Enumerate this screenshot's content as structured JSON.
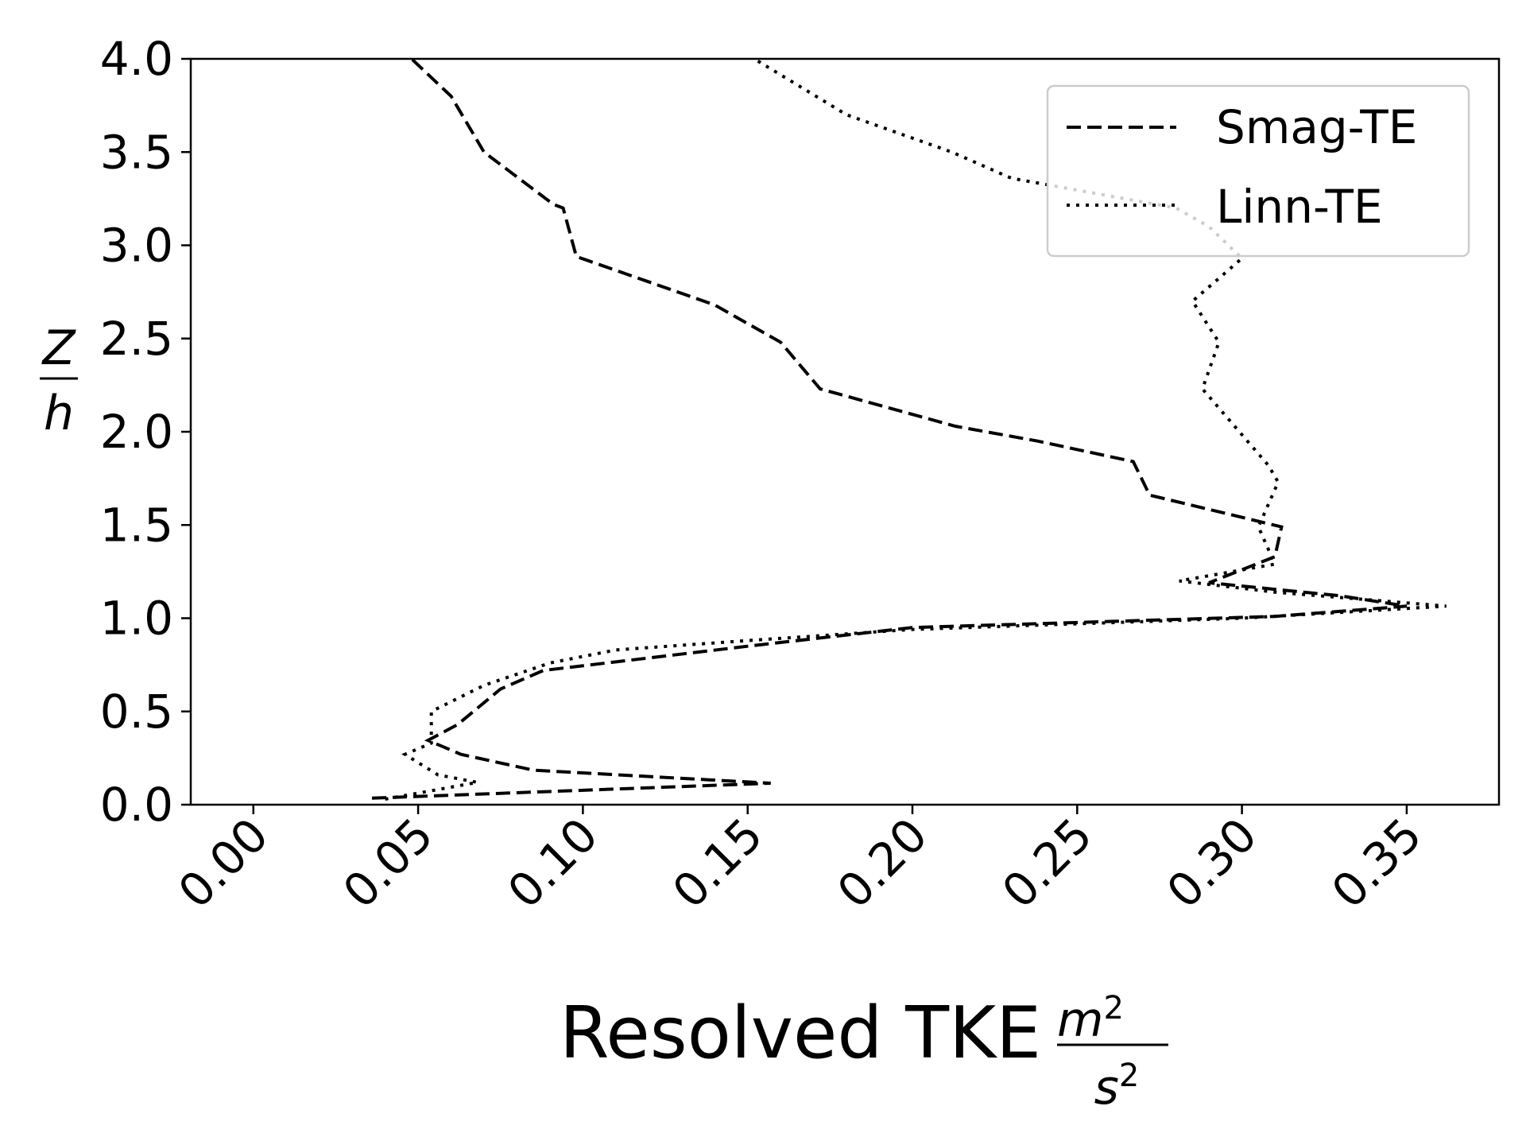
{
  "chart_data": {
    "type": "line",
    "xlabel": {
      "text": "Resolved TKE",
      "unit_numerator": "m",
      "unit_numerator_exp": "2",
      "unit_denominator": "s",
      "unit_denominator_exp": "2"
    },
    "ylabel": {
      "numerator": "Z",
      "denominator": "h"
    },
    "xlim": [
      -0.019,
      0.378
    ],
    "ylim": [
      0.0,
      4.0
    ],
    "xticks": [
      0.0,
      0.05,
      0.1,
      0.15,
      0.2,
      0.25,
      0.3,
      0.35
    ],
    "xtick_labels": [
      "0.00",
      "0.05",
      "0.10",
      "0.15",
      "0.20",
      "0.25",
      "0.30",
      "0.35"
    ],
    "yticks": [
      0.0,
      0.5,
      1.0,
      1.5,
      2.0,
      2.5,
      3.0,
      3.5,
      4.0
    ],
    "ytick_labels": [
      "0.0",
      "0.5",
      "1.0",
      "1.5",
      "2.0",
      "2.5",
      "3.0",
      "3.5",
      "4.0"
    ],
    "grid": false,
    "legend_position": "top-right",
    "series": [
      {
        "name": "Smag-TE",
        "style": "dashed",
        "color": "#000000",
        "points": [
          [
            0.036,
            0.035
          ],
          [
            0.157,
            0.115
          ],
          [
            0.085,
            0.185
          ],
          [
            0.063,
            0.27
          ],
          [
            0.053,
            0.345
          ],
          [
            0.062,
            0.43
          ],
          [
            0.075,
            0.62
          ],
          [
            0.088,
            0.72
          ],
          [
            0.15,
            0.85
          ],
          [
            0.2,
            0.95
          ],
          [
            0.31,
            1.01
          ],
          [
            0.35,
            1.065
          ],
          [
            0.33,
            1.12
          ],
          [
            0.29,
            1.19
          ],
          [
            0.31,
            1.33
          ],
          [
            0.312,
            1.49
          ],
          [
            0.272,
            1.66
          ],
          [
            0.267,
            1.84
          ],
          [
            0.238,
            1.95
          ],
          [
            0.213,
            2.03
          ],
          [
            0.172,
            2.23
          ],
          [
            0.16,
            2.48
          ],
          [
            0.14,
            2.68
          ],
          [
            0.098,
            2.94
          ],
          [
            0.094,
            3.2
          ],
          [
            0.091,
            3.22
          ],
          [
            0.07,
            3.5
          ],
          [
            0.06,
            3.8
          ],
          [
            0.048,
            4.0
          ]
        ]
      },
      {
        "name": "Linn-TE",
        "style": "dotted",
        "color": "#000000",
        "points": [
          [
            0.04,
            0.03
          ],
          [
            0.068,
            0.12
          ],
          [
            0.056,
            0.16
          ],
          [
            0.046,
            0.27
          ],
          [
            0.054,
            0.33
          ],
          [
            0.054,
            0.5
          ],
          [
            0.07,
            0.64
          ],
          [
            0.09,
            0.76
          ],
          [
            0.11,
            0.83
          ],
          [
            0.15,
            0.88
          ],
          [
            0.2,
            0.94
          ],
          [
            0.3,
            1.0
          ],
          [
            0.362,
            1.065
          ],
          [
            0.31,
            1.14
          ],
          [
            0.281,
            1.2
          ],
          [
            0.31,
            1.29
          ],
          [
            0.305,
            1.49
          ],
          [
            0.311,
            1.73
          ],
          [
            0.308,
            1.82
          ],
          [
            0.288,
            2.23
          ],
          [
            0.293,
            2.48
          ],
          [
            0.285,
            2.7
          ],
          [
            0.3,
            2.93
          ],
          [
            0.29,
            3.1
          ],
          [
            0.28,
            3.2
          ],
          [
            0.23,
            3.36
          ],
          [
            0.212,
            3.5
          ],
          [
            0.18,
            3.7
          ],
          [
            0.152,
            4.0
          ]
        ]
      }
    ]
  }
}
